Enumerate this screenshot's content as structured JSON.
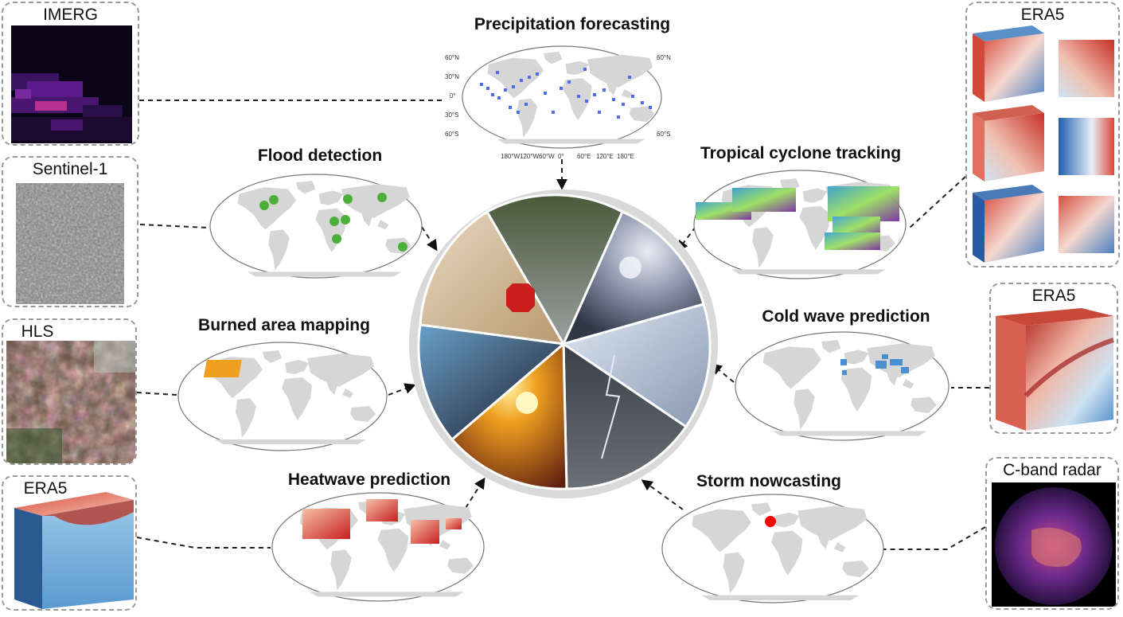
{
  "data_panels": {
    "imerg": {
      "label": "IMERG"
    },
    "sentinel1": {
      "label": "Sentinel-1"
    },
    "hls": {
      "label": "HLS"
    },
    "era5_left": {
      "label": "ERA5"
    },
    "era5_top_right": {
      "label": "ERA5"
    },
    "era5_mid_right": {
      "label": "ERA5"
    },
    "cband": {
      "label": "C-band radar"
    }
  },
  "tasks": {
    "precipitation": {
      "title": "Precipitation forecasting"
    },
    "flood": {
      "title": "Flood detection"
    },
    "cyclone": {
      "title": "Tropical cyclone tracking"
    },
    "burned": {
      "title": "Burned area mapping"
    },
    "coldwave": {
      "title": "Cold wave prediction"
    },
    "heatwave": {
      "title": "Heatwave prediction"
    },
    "storm": {
      "title": "Storm nowcasting"
    }
  },
  "precip_map_labels": {
    "lat_left": [
      "60°N",
      "30°N",
      "0°",
      "30°S",
      "60°S"
    ],
    "lat_right": [
      "60°N",
      "60°S"
    ],
    "lon": [
      "180°W",
      "120°W",
      "60°W",
      "0°",
      "60°E",
      "120°E",
      "180°E"
    ]
  },
  "colors": {
    "map_land": "#d6d6d6",
    "map_border": "#7a7a7a",
    "flood_marker": "#4caf3a",
    "storm_marker": "#ff0000",
    "burned_patch": "#f0a020",
    "precip_cells": "#4f6cf0",
    "dashed_line": "#222222",
    "wheel_ring": "#d9d9d9"
  }
}
